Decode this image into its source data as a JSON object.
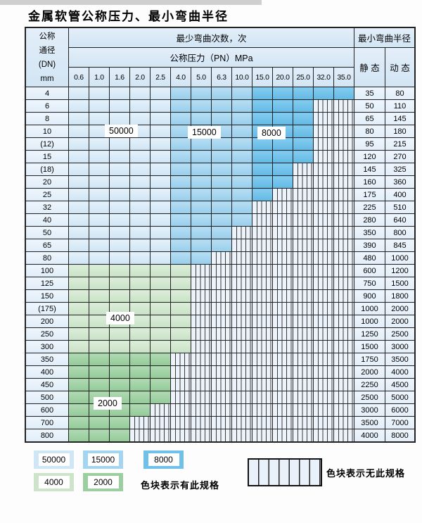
{
  "page": {
    "title": "金属软管公称压力、最小弯曲半径"
  },
  "table": {
    "header": {
      "dn_label_lines": [
        "公称",
        "通径",
        "(DN)",
        "mm"
      ],
      "cycles_label": "最少弯曲次数，次",
      "pressure_label": "公称压力（PN）MPa",
      "radius_label": "最小弯曲半径",
      "static_label": "静 态",
      "dynamic_label": "动 态",
      "pressure_columns": [
        "0.6",
        "1.0",
        "1.6",
        "2.0",
        "2.5",
        "4.0",
        "5.0",
        "6.3",
        "10.0",
        "15.0",
        "20.0",
        "25.0",
        "32.0",
        "35.0"
      ]
    },
    "zones": {
      "c50000": {
        "cycles": "50000",
        "color": "#d9ecf9",
        "col_start": 0,
        "col_end": 4
      },
      "c15000": {
        "cycles": "15000",
        "color": "#a6d6f0",
        "col_start": 5,
        "col_end": 8
      },
      "c8000": {
        "cycles": "8000",
        "color": "#72c3ea",
        "col_start": 9,
        "col_end": 13
      },
      "c4000": {
        "cycles": "4000",
        "color": "#d4e8d1"
      },
      "c2000": {
        "cycles": "2000",
        "color": "#a3d3a7"
      }
    },
    "rows": [
      {
        "dn": "4",
        "group": "blue",
        "colored": 14,
        "static": "35",
        "dynamic": "80"
      },
      {
        "dn": "6",
        "group": "blue",
        "colored": 12,
        "static": "50",
        "dynamic": "110"
      },
      {
        "dn": "8",
        "group": "blue",
        "colored": 12,
        "static": "65",
        "dynamic": "145"
      },
      {
        "dn": "10",
        "group": "blue",
        "colored": 12,
        "static": "80",
        "dynamic": "180"
      },
      {
        "dn": "(12)",
        "group": "blue",
        "colored": 12,
        "static": "95",
        "dynamic": "215"
      },
      {
        "dn": "15",
        "group": "blue",
        "colored": 12,
        "static": "120",
        "dynamic": "270"
      },
      {
        "dn": "(18)",
        "group": "blue",
        "colored": 11,
        "static": "145",
        "dynamic": "325"
      },
      {
        "dn": "20",
        "group": "blue",
        "colored": 11,
        "static": "160",
        "dynamic": "360"
      },
      {
        "dn": "25",
        "group": "blue",
        "colored": 10,
        "static": "175",
        "dynamic": "400"
      },
      {
        "dn": "32",
        "group": "blue",
        "colored": 9,
        "static": "225",
        "dynamic": "510"
      },
      {
        "dn": "40",
        "group": "blue",
        "colored": 9,
        "static": "280",
        "dynamic": "640"
      },
      {
        "dn": "50",
        "group": "blue",
        "colored": 8,
        "static": "350",
        "dynamic": "800"
      },
      {
        "dn": "65",
        "group": "blue",
        "colored": 8,
        "static": "390",
        "dynamic": "845"
      },
      {
        "dn": "80",
        "group": "blue",
        "colored": 7,
        "static": "480",
        "dynamic": "1000"
      },
      {
        "dn": "100",
        "group": "g4",
        "colored": 6,
        "static": "600",
        "dynamic": "1200"
      },
      {
        "dn": "125",
        "group": "g4",
        "colored": 6,
        "static": "750",
        "dynamic": "1500"
      },
      {
        "dn": "150",
        "group": "g4",
        "colored": 6,
        "static": "900",
        "dynamic": "1800"
      },
      {
        "dn": "(175)",
        "group": "g4",
        "colored": 6,
        "static": "1000",
        "dynamic": "2000"
      },
      {
        "dn": "200",
        "group": "g4",
        "colored": 6,
        "static": "1000",
        "dynamic": "2000"
      },
      {
        "dn": "250",
        "group": "g4",
        "colored": 6,
        "static": "1250",
        "dynamic": "2500"
      },
      {
        "dn": "300",
        "group": "g4",
        "colored": 6,
        "static": "1500",
        "dynamic": "3000"
      },
      {
        "dn": "350",
        "group": "g2",
        "colored": 5,
        "static": "1750",
        "dynamic": "3500"
      },
      {
        "dn": "400",
        "group": "g2",
        "colored": 5,
        "static": "2000",
        "dynamic": "4000"
      },
      {
        "dn": "450",
        "group": "g2",
        "colored": 5,
        "static": "2250",
        "dynamic": "4500"
      },
      {
        "dn": "500",
        "group": "g2",
        "colored": 5,
        "static": "2500",
        "dynamic": "5000"
      },
      {
        "dn": "600",
        "group": "g2",
        "colored": 4,
        "static": "3000",
        "dynamic": "6000"
      },
      {
        "dn": "700",
        "group": "g2",
        "colored": 3,
        "static": "3500",
        "dynamic": "7000"
      },
      {
        "dn": "800",
        "group": "g2",
        "colored": 3,
        "static": "4000",
        "dynamic": "8000"
      }
    ]
  },
  "overlay_labels": [
    "50000",
    "15000",
    "8000",
    "4000",
    "2000"
  ],
  "legend": {
    "items": [
      {
        "label": "50000",
        "zone": "c50000"
      },
      {
        "label": "15000",
        "zone": "c15000"
      },
      {
        "label": "8000",
        "zone": "c8000"
      },
      {
        "label": "4000",
        "zone": "c4000"
      },
      {
        "label": "2000",
        "zone": "c2000"
      }
    ],
    "has_spec_text": "色块表示有此规格",
    "no_spec_text": "色块表示无此规格"
  }
}
